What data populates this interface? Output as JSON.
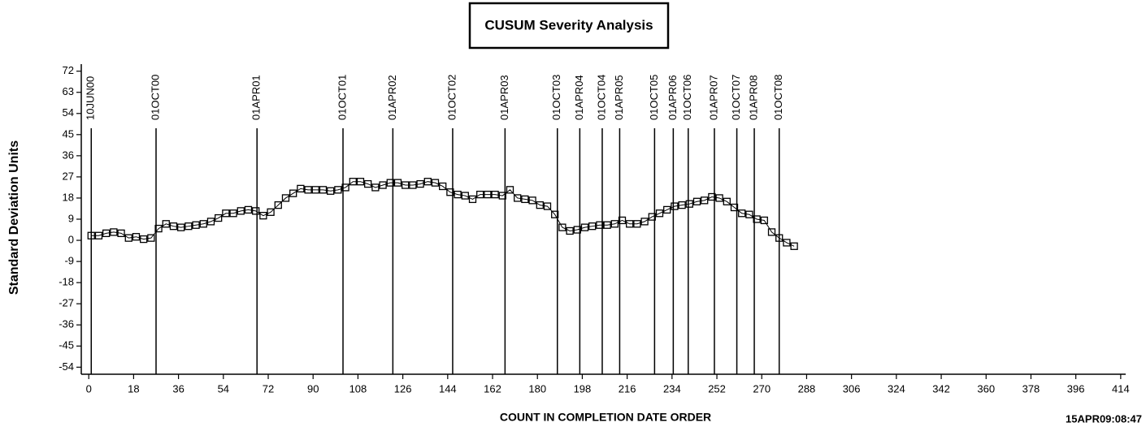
{
  "chart_data": {
    "type": "scatter",
    "title": "CUSUM Severity Analysis",
    "x_label": "COUNT IN COMPLETION DATE ORDER",
    "y_label": "Standard Deviation Units",
    "footnote": "15APR09:08:47",
    "xlim": [
      -3,
      416
    ],
    "ylim": [
      -57,
      75
    ],
    "xticks": [
      0,
      18,
      36,
      54,
      72,
      90,
      108,
      126,
      144,
      162,
      180,
      198,
      216,
      234,
      252,
      270,
      288,
      306,
      324,
      342,
      360,
      378,
      396,
      414
    ],
    "yticks": [
      72,
      63,
      54,
      45,
      36,
      27,
      18,
      9,
      0,
      -9,
      -18,
      -27,
      -36,
      -45,
      -54
    ],
    "reference_lines": [
      {
        "value": 1,
        "label": "10JUN00"
      },
      {
        "value": 27,
        "label": "01OCT00"
      },
      {
        "value": 67.5,
        "label": "01APR01"
      },
      {
        "value": 102,
        "label": "01OCT01"
      },
      {
        "value": 122,
        "label": "01APR02"
      },
      {
        "value": 146,
        "label": "01OCT02"
      },
      {
        "value": 167,
        "label": "01APR03"
      },
      {
        "value": 188,
        "label": "01OCT03"
      },
      {
        "value": 197,
        "label": "01APR04"
      },
      {
        "value": 206,
        "label": "01OCT04"
      },
      {
        "value": 213,
        "label": "01APR05"
      },
      {
        "value": 227,
        "label": "01OCT05"
      },
      {
        "value": 234.5,
        "label": "01APR06"
      },
      {
        "value": 240.5,
        "label": "01OCT06"
      },
      {
        "value": 251,
        "label": "01APR07"
      },
      {
        "value": 260,
        "label": "01OCT07"
      },
      {
        "value": 267,
        "label": "01APR08"
      },
      {
        "value": 277,
        "label": "01OCT08"
      }
    ],
    "series": [
      {
        "color": "#000000",
        "x": [
          1,
          4,
          7,
          10,
          13,
          16,
          19,
          22,
          25,
          28,
          31,
          34,
          37,
          40,
          43,
          46,
          49,
          52,
          55,
          58,
          61,
          64,
          67,
          70,
          73,
          76,
          79,
          82,
          85,
          88,
          91,
          94,
          97,
          100,
          103,
          106,
          109,
          112,
          115,
          118,
          121,
          124,
          127,
          130,
          133,
          136,
          139,
          142,
          145,
          148,
          151,
          154,
          157,
          160,
          163,
          166,
          169,
          172,
          175,
          178,
          181,
          184,
          187,
          190,
          193,
          196,
          199,
          202,
          205,
          208,
          211,
          214,
          217,
          220,
          223,
          226,
          229,
          232,
          235,
          238,
          241,
          244,
          247,
          250,
          253,
          256,
          259,
          262,
          265,
          268,
          271,
          274,
          277,
          280,
          283
        ],
        "values": [
          2,
          2,
          3,
          3.5,
          3,
          1,
          1.5,
          0.5,
          1,
          5,
          7,
          6,
          5.5,
          6,
          6.5,
          7,
          8,
          9.5,
          11.5,
          11.5,
          12.5,
          13,
          12.5,
          10.5,
          12,
          15,
          18,
          20,
          22,
          21.5,
          21.5,
          21.5,
          21,
          21.5,
          22.5,
          25,
          25,
          24,
          22.5,
          23.5,
          24.5,
          24.5,
          23.5,
          23.5,
          24,
          25,
          24.5,
          23,
          20.5,
          19.5,
          19,
          17.5,
          19.5,
          19.5,
          19.5,
          19,
          21.5,
          18,
          17.5,
          17,
          15,
          14.5,
          11,
          5.5,
          4,
          4.5,
          5.5,
          6,
          6.5,
          6.5,
          7,
          8.5,
          7,
          7,
          8,
          10,
          11.5,
          13,
          14.5,
          15,
          15.5,
          16.5,
          17,
          18.5,
          18,
          16.5,
          14,
          11.5,
          11,
          9,
          8.5,
          3.5,
          1,
          -1,
          -2.5
        ]
      }
    ]
  }
}
